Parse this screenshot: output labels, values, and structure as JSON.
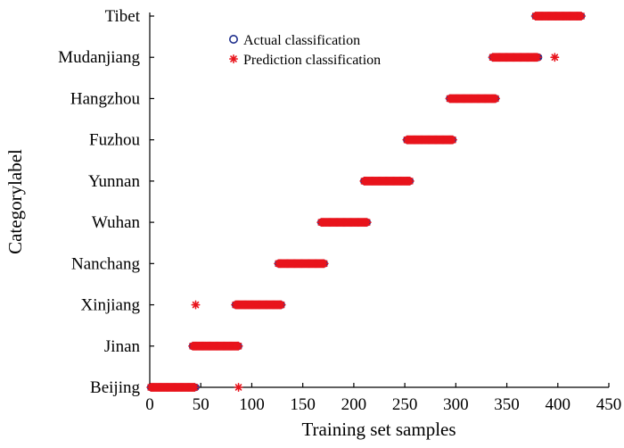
{
  "chart_data": {
    "type": "scatter",
    "title": "",
    "xlabel": "Training set samples",
    "ylabel": "Categorylabel",
    "xlim": [
      0,
      450
    ],
    "x_ticks": [
      0,
      50,
      100,
      150,
      200,
      250,
      300,
      350,
      400,
      450
    ],
    "categories": [
      "Beijing",
      "Jinan",
      "Xinjiang",
      "Nanchang",
      "Wuhan",
      "Yunnan",
      "Fuzhou",
      "Hangzhou",
      "Mudanjiang",
      "Tibet"
    ],
    "grid": false,
    "legend_position": "top-center",
    "series": [
      {
        "name": "Actual classification",
        "marker": "open-circle",
        "color": "#1f2f8c",
        "ranges": [
          {
            "category": "Beijing",
            "x_start": 1,
            "x_end": 45
          },
          {
            "category": "Jinan",
            "x_start": 42,
            "x_end": 87
          },
          {
            "category": "Xinjiang",
            "x_start": 84,
            "x_end": 129
          },
          {
            "category": "Nanchang",
            "x_start": 126,
            "x_end": 171
          },
          {
            "category": "Wuhan",
            "x_start": 168,
            "x_end": 213
          },
          {
            "category": "Yunnan",
            "x_start": 210,
            "x_end": 255
          },
          {
            "category": "Fuzhou",
            "x_start": 252,
            "x_end": 297
          },
          {
            "category": "Hangzhou",
            "x_start": 294,
            "x_end": 339
          },
          {
            "category": "Mudanjiang",
            "x_start": 336,
            "x_end": 381
          },
          {
            "category": "Tibet",
            "x_start": 378,
            "x_end": 423
          }
        ]
      },
      {
        "name": "Prediction classification",
        "marker": "asterisk",
        "color": "#e8141c",
        "ranges": [
          {
            "category": "Beijing",
            "x_start": 1,
            "x_end": 44
          },
          {
            "category": "Jinan",
            "x_start": 42,
            "x_end": 87
          },
          {
            "category": "Xinjiang",
            "x_start": 84,
            "x_end": 129
          },
          {
            "category": "Nanchang",
            "x_start": 126,
            "x_end": 171
          },
          {
            "category": "Wuhan",
            "x_start": 168,
            "x_end": 213
          },
          {
            "category": "Yunnan",
            "x_start": 210,
            "x_end": 255
          },
          {
            "category": "Fuzhou",
            "x_start": 252,
            "x_end": 297
          },
          {
            "category": "Hangzhou",
            "x_start": 294,
            "x_end": 339
          },
          {
            "category": "Mudanjiang",
            "x_start": 336,
            "x_end": 380
          },
          {
            "category": "Tibet",
            "x_start": 378,
            "x_end": 423
          }
        ],
        "outliers": [
          {
            "x": 45,
            "category": "Xinjiang"
          },
          {
            "x": 87,
            "category": "Beijing"
          },
          {
            "x": 397,
            "category": "Mudanjiang"
          }
        ]
      }
    ]
  }
}
